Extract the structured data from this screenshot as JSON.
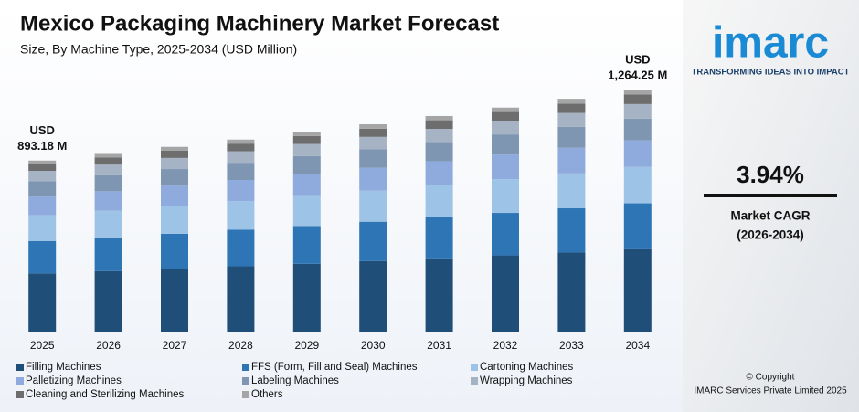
{
  "chart_data": {
    "type": "stacked_bar",
    "title": "Mexico Packaging Machinery Market Forecast",
    "subtitle": "Size, By Machine Type, 2025-2034 (USD Million)",
    "categories": [
      "2025",
      "2026",
      "2027",
      "2028",
      "2029",
      "2030",
      "2031",
      "2032",
      "2033",
      "2034"
    ],
    "series": [
      {
        "name": "Filling Machines",
        "color": "#1f4e79",
        "values": [
          303.68,
          316,
          328,
          341,
          354,
          368,
          383,
          398,
          413,
          429.85
        ]
      },
      {
        "name": "FFS (Form, Fill and Seal) Machines",
        "color": "#2e75b6",
        "values": [
          169.7,
          176,
          183,
          191,
          198,
          206,
          214,
          222,
          231,
          240.21
        ]
      },
      {
        "name": "Cartoning Machines",
        "color": "#9dc3e6",
        "values": [
          133.98,
          139,
          145,
          150,
          156,
          162,
          169,
          176,
          182,
          189.64
        ]
      },
      {
        "name": "Palletizing Machines",
        "color": "#8faadc",
        "values": [
          98.25,
          102,
          106,
          110,
          115,
          119,
          124,
          129,
          134,
          139.07
        ]
      },
      {
        "name": "Labeling Machines",
        "color": "#7f96b2",
        "values": [
          80.39,
          83,
          87,
          90,
          94,
          97,
          101,
          105,
          109,
          113.78
        ]
      },
      {
        "name": "Wrapping Machines",
        "color": "#a6b3c4",
        "values": [
          53.59,
          56,
          58,
          60,
          63,
          65,
          68,
          70,
          73,
          75.86
        ]
      },
      {
        "name": "Cleaning and Sterilizing Machines",
        "color": "#6d6d6d",
        "values": [
          35.73,
          37,
          39,
          40,
          42,
          43,
          45,
          47,
          49,
          50.57
        ]
      },
      {
        "name": "Others",
        "color": "#a5a5a5",
        "values": [
          17.86,
          19,
          19,
          21,
          20,
          23,
          22,
          23,
          25,
          25.27
        ]
      }
    ],
    "total_labels": [
      [
        "USD",
        "893.18 M"
      ],
      null,
      null,
      null,
      null,
      null,
      null,
      null,
      null,
      [
        "USD",
        "1,264.25 M"
      ]
    ]
  },
  "branding": {
    "logo": "imarc",
    "tagline": "TRANSFORMING IDEAS INTO IMPACT",
    "cagr": "3.94%",
    "cagr_label": "Market CAGR",
    "cagr_period": "(2026-2034)",
    "copyright": "© Copyright",
    "company": "IMARC Services Private Limited 2025"
  }
}
